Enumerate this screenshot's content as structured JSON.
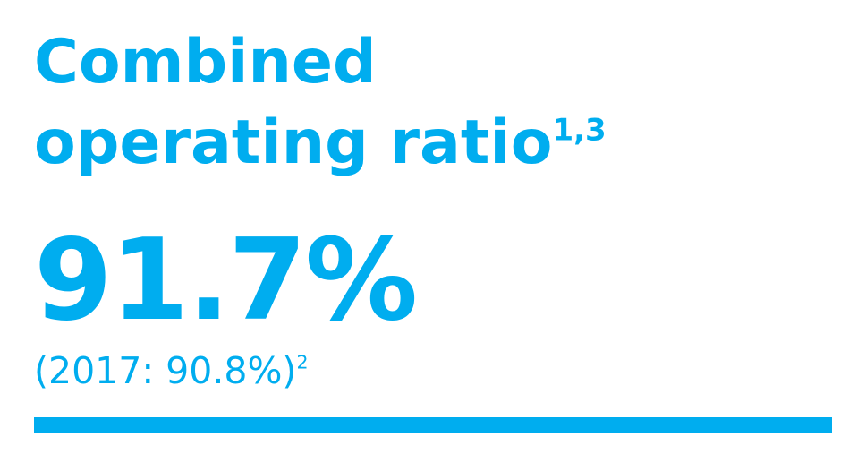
{
  "title": {
    "line1": "Combined",
    "line2": "operating ratio",
    "note": "1,3"
  },
  "value": "91.7%",
  "comparison": {
    "text": "(2017: 90.8%)",
    "note": "2"
  }
}
